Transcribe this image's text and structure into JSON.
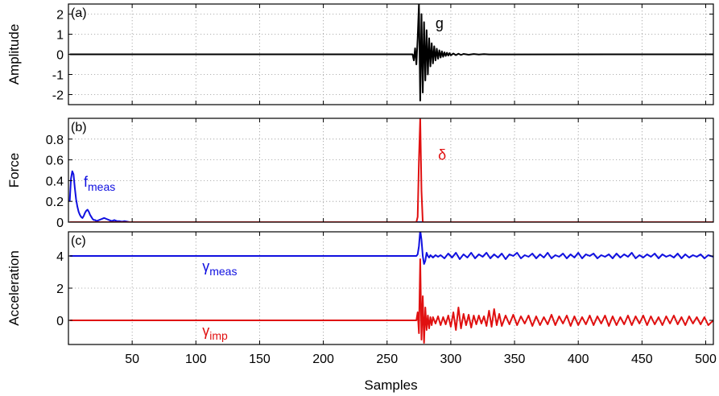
{
  "chart_data": [
    {
      "id": "a",
      "type": "line",
      "panel_label": "(a)",
      "ylabel": "Amplitude",
      "ylim": [
        -2.5,
        2.5
      ],
      "yticks": [
        -2,
        -1,
        0,
        1,
        2
      ],
      "grid": true,
      "annotations": [
        {
          "text": "g",
          "x": 288,
          "y": 1.3,
          "color": "#000000"
        }
      ],
      "series": [
        {
          "color": "#000000",
          "x": [
            1,
            270,
            271,
            272,
            273,
            274,
            275,
            276,
            277,
            278,
            279,
            280,
            281,
            282,
            283,
            284,
            285,
            286,
            287,
            288,
            289,
            290,
            291,
            292,
            293,
            294,
            295,
            296,
            297,
            298,
            299,
            300,
            302,
            304,
            306,
            308,
            310,
            314,
            318,
            322,
            326,
            330,
            506
          ],
          "y": [
            0,
            0,
            -0.3,
            0.3,
            -0.5,
            0.8,
            2.5,
            -2.3,
            2.0,
            -1.9,
            1.6,
            -1.3,
            1.2,
            -1.0,
            0.8,
            -0.6,
            0.55,
            -0.45,
            0.4,
            -0.3,
            0.28,
            -0.22,
            0.2,
            -0.16,
            0.15,
            -0.12,
            0.1,
            -0.08,
            0.08,
            -0.06,
            0.06,
            -0.05,
            0.04,
            -0.04,
            0.03,
            -0.03,
            0.02,
            -0.02,
            0.015,
            -0.01,
            0.01,
            -0.005,
            0
          ]
        }
      ]
    },
    {
      "id": "b",
      "type": "line",
      "panel_label": "(b)",
      "ylabel": "Force",
      "ylim": [
        0,
        1
      ],
      "yticks": [
        0,
        0.2,
        0.4,
        0.6,
        0.8
      ],
      "grid": true,
      "annotations": [
        {
          "text": "f",
          "sub": "meas",
          "x": 12,
          "y": 0.34,
          "color": "#1010e0"
        },
        {
          "text": "δ",
          "x": 290,
          "y": 0.6,
          "color": "#e01010"
        }
      ],
      "series": [
        {
          "color": "#1010e0",
          "x": [
            1,
            2,
            3,
            4,
            5,
            6,
            7,
            8,
            9,
            10,
            11,
            12,
            13,
            14,
            15,
            16,
            17,
            18,
            19,
            20,
            21,
            22,
            24,
            26,
            28,
            30,
            32,
            34,
            36,
            38,
            40,
            42,
            44,
            46,
            48,
            506
          ],
          "y": [
            0.2,
            0.42,
            0.49,
            0.46,
            0.33,
            0.22,
            0.15,
            0.1,
            0.07,
            0.05,
            0.04,
            0.06,
            0.09,
            0.11,
            0.12,
            0.1,
            0.07,
            0.05,
            0.03,
            0.02,
            0.02,
            0.01,
            0.02,
            0.03,
            0.04,
            0.03,
            0.02,
            0.01,
            0.02,
            0.01,
            0.01,
            0.005,
            0.01,
            0.005,
            0,
            0
          ]
        },
        {
          "color": "#e01010",
          "x": [
            1,
            273,
            274,
            275,
            276,
            277,
            278,
            506
          ],
          "y": [
            0,
            0,
            0.05,
            0.6,
            1.0,
            0.3,
            0,
            0
          ]
        }
      ]
    },
    {
      "id": "c",
      "type": "line",
      "panel_label": "(c)",
      "ylabel": "Acceleration",
      "xlabel": "Samples",
      "ylim": [
        -1.5,
        5.5
      ],
      "yticks": [
        0,
        2,
        4
      ],
      "xlim": [
        0,
        506
      ],
      "xticks": [
        50,
        100,
        150,
        200,
        250,
        300,
        350,
        400,
        450,
        500
      ],
      "grid": true,
      "annotations": [
        {
          "text": "γ",
          "sub": "meas",
          "x": 105,
          "y": 3.05,
          "color": "#1010e0"
        },
        {
          "text": "γ",
          "sub": "imp",
          "x": 105,
          "y": -0.95,
          "color": "#e01010"
        }
      ],
      "series": [
        {
          "color": "#1010e0",
          "x": [
            1,
            273,
            274,
            275,
            276,
            277,
            278,
            279,
            280,
            281,
            282,
            283,
            284,
            286,
            288,
            290,
            292,
            295,
            298,
            301,
            304,
            307,
            310,
            313,
            316,
            319,
            322,
            325,
            328,
            331,
            334,
            337,
            340,
            343,
            346,
            349,
            352,
            355,
            358,
            361,
            364,
            367,
            370,
            373,
            376,
            379,
            382,
            385,
            388,
            391,
            394,
            397,
            400,
            403,
            406,
            409,
            412,
            415,
            418,
            421,
            424,
            427,
            430,
            433,
            436,
            439,
            442,
            445,
            448,
            451,
            454,
            457,
            460,
            463,
            466,
            469,
            472,
            475,
            478,
            481,
            484,
            487,
            490,
            493,
            496,
            499,
            502,
            506
          ],
          "y": [
            4,
            4,
            4.1,
            4.6,
            5.6,
            5.0,
            4.0,
            3.5,
            3.7,
            4.2,
            4.0,
            3.9,
            4.05,
            3.9,
            4.05,
            3.95,
            4.05,
            3.85,
            4.15,
            3.9,
            4.2,
            3.8,
            4.1,
            3.9,
            4.2,
            3.85,
            4.1,
            3.95,
            4.2,
            3.85,
            4.1,
            3.9,
            4.15,
            3.8,
            4.1,
            4.0,
            4.2,
            3.85,
            4.05,
            3.95,
            4.15,
            3.85,
            4.1,
            3.9,
            4.2,
            3.85,
            4.05,
            3.95,
            4.15,
            3.85,
            4.1,
            3.9,
            4.2,
            3.85,
            4.1,
            4.0,
            4.15,
            3.85,
            4.05,
            3.95,
            4.1,
            3.85,
            4.15,
            3.9,
            4.1,
            3.95,
            4.2,
            3.85,
            4.05,
            3.9,
            4.1,
            3.95,
            4.15,
            3.85,
            4.1,
            3.95,
            4.05,
            3.9,
            4.15,
            3.85,
            4.1,
            3.9,
            4.05,
            3.95,
            4.1,
            3.85,
            4.05,
            3.95
          ]
        },
        {
          "color": "#e01010",
          "x": [
            1,
            273,
            274,
            275,
            276,
            277,
            278,
            279,
            280,
            281,
            282,
            283,
            284,
            285,
            286,
            288,
            290,
            292,
            294,
            296,
            298,
            300,
            302,
            304,
            306,
            308,
            310,
            312,
            314,
            316,
            318,
            320,
            322,
            324,
            326,
            328,
            330,
            332,
            334,
            336,
            338,
            340,
            343,
            346,
            349,
            352,
            355,
            358,
            361,
            364,
            367,
            370,
            373,
            376,
            379,
            382,
            385,
            388,
            391,
            394,
            397,
            400,
            403,
            406,
            409,
            412,
            415,
            418,
            421,
            424,
            427,
            430,
            433,
            436,
            439,
            442,
            445,
            448,
            451,
            454,
            457,
            460,
            463,
            466,
            469,
            472,
            475,
            478,
            481,
            484,
            487,
            490,
            493,
            496,
            499,
            502,
            506
          ],
          "y": [
            0,
            0,
            0.5,
            -0.8,
            3.8,
            -1.2,
            1.5,
            -1.4,
            0.8,
            -0.6,
            0.3,
            -0.5,
            0.2,
            -0.3,
            0.2,
            -0.2,
            0.25,
            -0.3,
            0.2,
            -0.25,
            0.3,
            -0.4,
            0.5,
            -0.6,
            0.8,
            -0.5,
            0.4,
            -0.3,
            0.35,
            -0.45,
            0.3,
            -0.25,
            0.3,
            -0.2,
            0.25,
            -0.35,
            0.6,
            -0.4,
            0.7,
            -0.3,
            0.4,
            -0.35,
            0.3,
            -0.25,
            0.35,
            -0.3,
            0.25,
            -0.2,
            0.3,
            -0.35,
            0.25,
            -0.3,
            0.2,
            -0.25,
            0.35,
            -0.3,
            0.25,
            -0.2,
            0.3,
            -0.35,
            0.25,
            -0.3,
            0.2,
            -0.25,
            0.3,
            -0.3,
            0.25,
            -0.2,
            0.3,
            -0.35,
            0.25,
            -0.3,
            0.2,
            -0.25,
            0.3,
            -0.3,
            0.25,
            -0.2,
            0.3,
            -0.3,
            0.25,
            -0.25,
            0.2,
            -0.3,
            0.25,
            -0.2,
            0.3,
            -0.25,
            0.2,
            -0.3,
            0.25,
            -0.2,
            0.2,
            -0.25,
            0.2,
            -0.3,
            0
          ]
        }
      ]
    }
  ]
}
